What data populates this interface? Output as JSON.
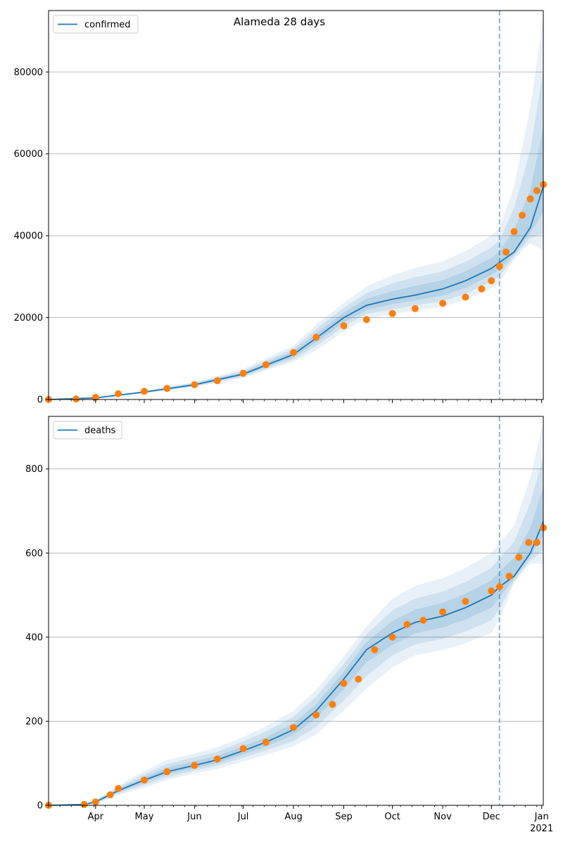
{
  "colors": {
    "line": "#1f77b4",
    "observed": "#ff7f0e",
    "band": "#1f77b4",
    "grid": "#b0b0b0",
    "vline": "#1f77b4"
  },
  "x_axis": {
    "month_labels": [
      "Apr",
      "May",
      "Jun",
      "Jul",
      "Aug",
      "Sep",
      "Oct",
      "Nov",
      "Dec",
      "Jan"
    ],
    "year_label": "2021"
  },
  "chart_data": [
    {
      "type": "line",
      "title": "Alameda 28 days",
      "legend": {
        "position": "top-left",
        "entries": [
          "confirmed"
        ]
      },
      "xlim": [
        "2020-03-03",
        "2021-01-02"
      ],
      "ylim": [
        0,
        95000
      ],
      "yticks": [
        0,
        20000,
        40000,
        60000,
        80000
      ],
      "ytick_labels": [
        "0",
        "20000",
        "40000",
        "60000",
        "80000"
      ],
      "grid": "horizontal",
      "forecast_start": "2020-12-06",
      "series": [
        {
          "name": "confirmed",
          "style": "line",
          "x": [
            "2020-03-03",
            "2020-04-01",
            "2020-05-01",
            "2020-06-01",
            "2020-07-01",
            "2020-08-01",
            "2020-08-15",
            "2020-09-01",
            "2020-09-15",
            "2020-10-01",
            "2020-10-15",
            "2020-11-01",
            "2020-11-15",
            "2020-12-01",
            "2020-12-06",
            "2020-12-15",
            "2020-12-25",
            "2021-01-02"
          ],
          "values": [
            0,
            400,
            1800,
            3600,
            6200,
            11000,
            15000,
            20000,
            23000,
            24500,
            25500,
            27000,
            29000,
            32000,
            33500,
            36000,
            42000,
            52000
          ]
        },
        {
          "style": "scatter",
          "x": [
            "2020-03-03",
            "2020-03-20",
            "2020-04-01",
            "2020-04-15",
            "2020-05-01",
            "2020-05-15",
            "2020-06-01",
            "2020-06-15",
            "2020-07-01",
            "2020-07-15",
            "2020-08-01",
            "2020-08-15",
            "2020-09-01",
            "2020-09-15",
            "2020-10-01",
            "2020-10-15",
            "2020-11-01",
            "2020-11-15",
            "2020-11-25",
            "2020-12-01",
            "2020-12-06",
            "2020-12-10",
            "2020-12-15",
            "2020-12-20",
            "2020-12-25",
            "2020-12-29",
            "2021-01-02"
          ],
          "values": [
            0,
            100,
            500,
            1400,
            2000,
            2700,
            3600,
            4600,
            6400,
            8500,
            11500,
            15200,
            18000,
            19500,
            21000,
            22200,
            23500,
            25000,
            27000,
            29000,
            32500,
            36000,
            41000,
            45000,
            49000,
            51000,
            52500
          ]
        }
      ],
      "bands": [
        {
          "upper_offsets": [
            0,
            0.18,
            0.18,
            0.2,
            0.2,
            0.2,
            0.22,
            0.18,
            0.2,
            0.24,
            0.26,
            0.25,
            0.25,
            0.25,
            0.25,
            0.45,
            0.7,
            0.8
          ],
          "lower_offsets": [
            0,
            0.15,
            0.15,
            0.16,
            0.15,
            0.16,
            0.2,
            0.17,
            0.14,
            0.15,
            0.15,
            0.16,
            0.16,
            0.15,
            0.15,
            0.05,
            0.09,
            0.3
          ]
        },
        {
          "upper_offsets": [
            0,
            0.12,
            0.12,
            0.13,
            0.13,
            0.13,
            0.15,
            0.12,
            0.13,
            0.16,
            0.17,
            0.16,
            0.16,
            0.16,
            0.16,
            0.3,
            0.45,
            0.55
          ],
          "lower_offsets": [
            0,
            0.1,
            0.1,
            0.11,
            0.1,
            0.11,
            0.13,
            0.11,
            0.09,
            0.1,
            0.1,
            0.11,
            0.11,
            0.1,
            0.1,
            0.03,
            0.06,
            0.22
          ]
        },
        {
          "upper_offsets": [
            0,
            0.06,
            0.06,
            0.07,
            0.07,
            0.07,
            0.08,
            0.06,
            0.07,
            0.08,
            0.09,
            0.08,
            0.08,
            0.08,
            0.08,
            0.15,
            0.22,
            0.28
          ],
          "lower_offsets": [
            0,
            0.05,
            0.05,
            0.06,
            0.05,
            0.06,
            0.07,
            0.06,
            0.05,
            0.05,
            0.05,
            0.06,
            0.06,
            0.05,
            0.05,
            0.015,
            0.03,
            0.12
          ]
        }
      ]
    },
    {
      "type": "line",
      "title": "",
      "legend": {
        "position": "top-left",
        "entries": [
          "deaths"
        ]
      },
      "xlim": [
        "2020-03-03",
        "2021-01-02"
      ],
      "ylim": [
        0,
        925
      ],
      "yticks": [
        0,
        200,
        400,
        600,
        800
      ],
      "ytick_labels": [
        "0",
        "200",
        "400",
        "600",
        "800"
      ],
      "grid": "horizontal",
      "forecast_start": "2020-12-06",
      "series": [
        {
          "name": "deaths",
          "style": "line",
          "x": [
            "2020-03-03",
            "2020-03-25",
            "2020-04-01",
            "2020-04-15",
            "2020-05-01",
            "2020-05-15",
            "2020-06-01",
            "2020-06-15",
            "2020-07-01",
            "2020-07-15",
            "2020-08-01",
            "2020-08-15",
            "2020-09-01",
            "2020-09-15",
            "2020-10-01",
            "2020-10-15",
            "2020-11-01",
            "2020-11-15",
            "2020-12-01",
            "2020-12-06",
            "2020-12-15",
            "2020-12-25",
            "2021-01-02"
          ],
          "values": [
            0,
            2,
            8,
            35,
            60,
            80,
            95,
            108,
            130,
            150,
            180,
            225,
            300,
            370,
            410,
            435,
            450,
            470,
            500,
            520,
            545,
            600,
            675
          ]
        },
        {
          "style": "scatter",
          "x": [
            "2020-03-03",
            "2020-03-25",
            "2020-04-01",
            "2020-04-10",
            "2020-04-15",
            "2020-05-01",
            "2020-05-15",
            "2020-06-01",
            "2020-06-15",
            "2020-07-01",
            "2020-07-15",
            "2020-08-01",
            "2020-08-15",
            "2020-08-25",
            "2020-09-01",
            "2020-09-10",
            "2020-09-20",
            "2020-10-01",
            "2020-10-10",
            "2020-10-20",
            "2020-11-01",
            "2020-11-15",
            "2020-12-01",
            "2020-12-06",
            "2020-12-12",
            "2020-12-18",
            "2020-12-24",
            "2020-12-29",
            "2021-01-02"
          ],
          "values": [
            0,
            2,
            8,
            25,
            40,
            60,
            80,
            95,
            110,
            135,
            150,
            185,
            215,
            240,
            290,
            300,
            370,
            400,
            430,
            440,
            460,
            485,
            510,
            520,
            545,
            590,
            625,
            625,
            660
          ]
        }
      ],
      "bands": [
        {
          "upper_offsets": [
            0,
            0.5,
            0.6,
            0.35,
            0.35,
            0.35,
            0.3,
            0.28,
            0.25,
            0.25,
            0.25,
            0.22,
            0.18,
            0.15,
            0.2,
            0.2,
            0.2,
            0.2,
            0.2,
            0.2,
            0.22,
            0.3,
            0.35
          ],
          "lower_offsets": [
            0,
            0.5,
            0.6,
            0.3,
            0.3,
            0.25,
            0.2,
            0.2,
            0.2,
            0.2,
            0.22,
            0.25,
            0.25,
            0.25,
            0.2,
            0.18,
            0.18,
            0.18,
            0.18,
            0.15,
            0.03,
            0.04,
            0.15
          ]
        },
        {
          "upper_offsets": [
            0,
            0.35,
            0.4,
            0.23,
            0.23,
            0.23,
            0.2,
            0.18,
            0.17,
            0.17,
            0.17,
            0.15,
            0.12,
            0.1,
            0.13,
            0.13,
            0.13,
            0.13,
            0.13,
            0.13,
            0.15,
            0.2,
            0.23
          ],
          "lower_offsets": [
            0,
            0.35,
            0.4,
            0.2,
            0.2,
            0.17,
            0.13,
            0.13,
            0.13,
            0.13,
            0.15,
            0.17,
            0.17,
            0.17,
            0.13,
            0.12,
            0.12,
            0.12,
            0.12,
            0.1,
            0.02,
            0.03,
            0.1
          ]
        },
        {
          "upper_offsets": [
            0,
            0.17,
            0.2,
            0.12,
            0.12,
            0.12,
            0.1,
            0.09,
            0.08,
            0.08,
            0.08,
            0.07,
            0.06,
            0.05,
            0.07,
            0.07,
            0.07,
            0.07,
            0.07,
            0.07,
            0.08,
            0.1,
            0.12
          ],
          "lower_offsets": [
            0,
            0.17,
            0.2,
            0.1,
            0.1,
            0.08,
            0.07,
            0.07,
            0.07,
            0.07,
            0.07,
            0.08,
            0.08,
            0.08,
            0.07,
            0.06,
            0.06,
            0.06,
            0.06,
            0.05,
            0.01,
            0.015,
            0.05
          ]
        }
      ]
    }
  ]
}
